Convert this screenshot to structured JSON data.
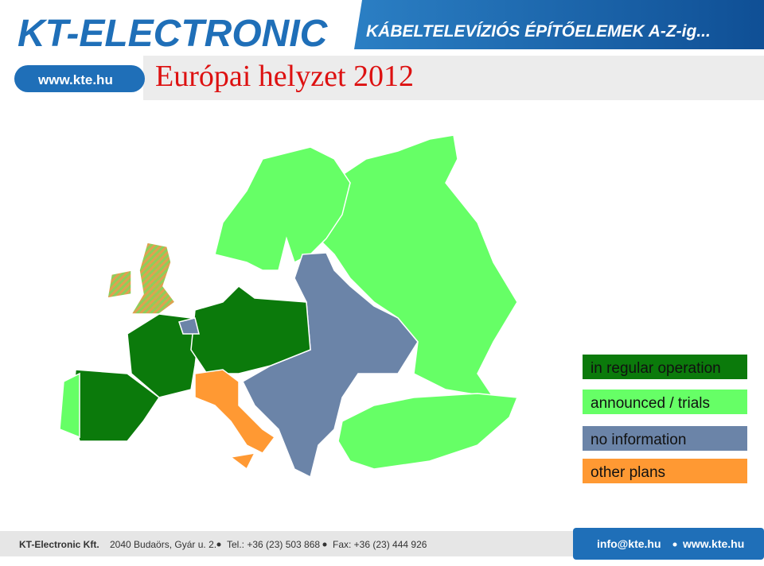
{
  "header": {
    "logo": "KT-ELECTRONIC",
    "tagline": "KÁBELTELEVÍZIÓS ÉPÍTŐELEMEK A-Z-ig...",
    "website": "www.kte.hu"
  },
  "title": "Európai helyzet 2012",
  "legend": [
    {
      "label": "in regular operation",
      "color": "#0b7a0b"
    },
    {
      "label": "announced / trials",
      "color": "#66ff66"
    },
    {
      "label": "no information",
      "color": "#6b84a8"
    },
    {
      "label": "other plans",
      "color": "#ff9933"
    }
  ],
  "footer": {
    "company": "KT-Electronic Kft.",
    "address": "2040 Budaörs, Gyár u. 2.",
    "phone": "Tel.: +36 (23) 503 868",
    "fax": "Fax: +36 (23) 444 926",
    "email": "info@kte.hu",
    "website": "www.kte.hu"
  }
}
